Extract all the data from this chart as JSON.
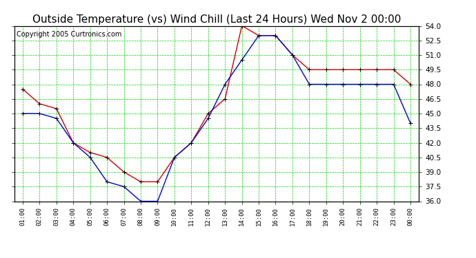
{
  "title": "Outside Temperature (vs) Wind Chill (Last 24 Hours) Wed Nov 2 00:00",
  "copyright": "Copyright 2005 Curtronics.com",
  "x_labels": [
    "01:00",
    "02:00",
    "03:00",
    "04:00",
    "05:00",
    "06:00",
    "07:00",
    "08:00",
    "09:00",
    "10:00",
    "11:00",
    "12:00",
    "13:00",
    "14:00",
    "15:00",
    "16:00",
    "17:00",
    "18:00",
    "19:00",
    "20:00",
    "21:00",
    "22:00",
    "23:00",
    "00:00"
  ],
  "outside_temp": [
    47.5,
    46.0,
    45.5,
    42.0,
    41.0,
    40.5,
    39.0,
    38.0,
    38.0,
    40.5,
    42.0,
    45.0,
    46.5,
    54.0,
    53.0,
    53.0,
    51.0,
    49.5,
    49.5,
    49.5,
    49.5,
    49.5,
    49.5,
    48.0
  ],
  "wind_chill": [
    45.0,
    45.0,
    44.5,
    42.0,
    40.5,
    38.0,
    37.5,
    36.0,
    36.0,
    40.5,
    42.0,
    44.5,
    48.0,
    50.5,
    53.0,
    53.0,
    51.0,
    48.0,
    48.0,
    48.0,
    48.0,
    48.0,
    48.0,
    44.0
  ],
  "outside_color": "#cc0000",
  "windchill_color": "#0000cc",
  "bg_color": "#ffffff",
  "grid_color": "#00cc00",
  "ylim": [
    36.0,
    54.0
  ],
  "yticks": [
    36.0,
    37.5,
    39.0,
    40.5,
    42.0,
    43.5,
    45.0,
    46.5,
    48.0,
    49.5,
    51.0,
    52.5,
    54.0
  ],
  "title_fontsize": 11,
  "copyright_fontsize": 7
}
